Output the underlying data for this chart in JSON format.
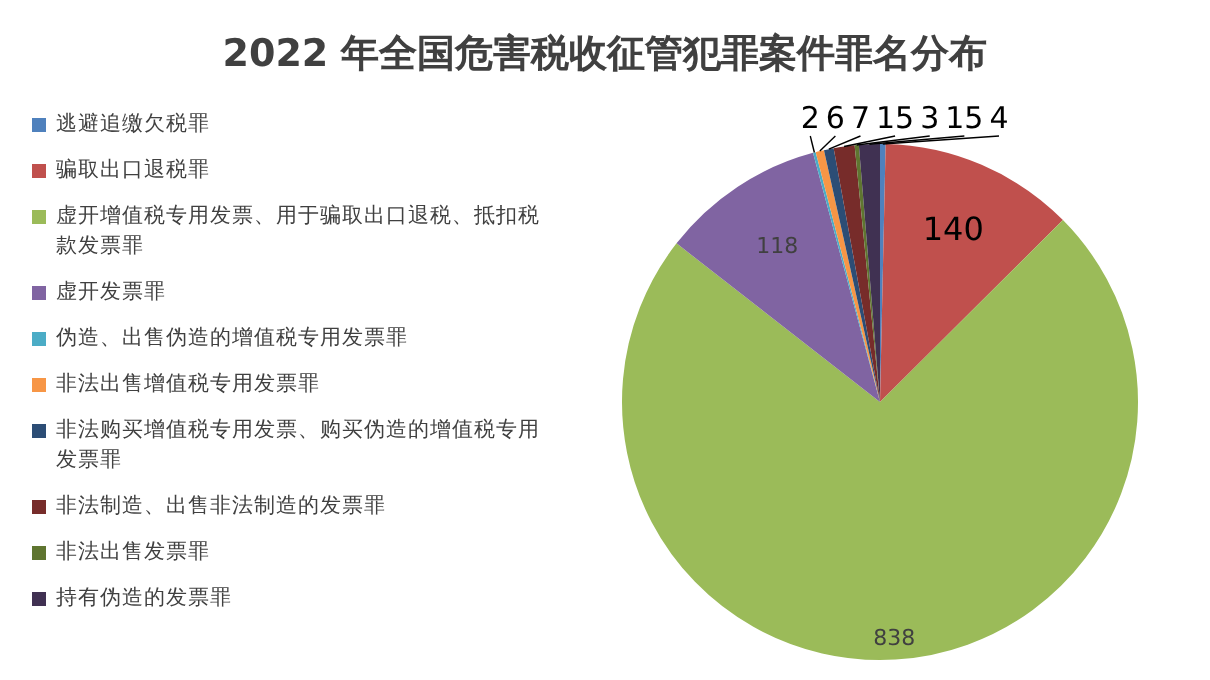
{
  "chart_data": {
    "type": "pie",
    "title": "2022 年全国危害税收征管犯罪案件罪名分布",
    "categories": [
      "逃避追缴欠税罪",
      "骗取出口退税罪",
      "虚开增值税专用发票、用于骗取出口退税、抵扣税款发票罪",
      "虚开发票罪",
      "伪造、出售伪造的增值税专用发票罪",
      "非法出售增值税专用发票罪",
      "非法购买增值税专用发票、购买伪造的增值税专用发票罪",
      "非法制造、出售非法制造的发票罪",
      "非法出售发票罪",
      "持有伪造的发票罪"
    ],
    "values": [
      4,
      140,
      838,
      118,
      2,
      6,
      7,
      15,
      3,
      15
    ],
    "colors": [
      "#4f81bd",
      "#c0504d",
      "#9bbb59",
      "#8064a2",
      "#4bacc6",
      "#f79646",
      "#2c4d75",
      "#772c2a",
      "#5f7530",
      "#403152"
    ],
    "data_labels": true,
    "legend": "left"
  }
}
